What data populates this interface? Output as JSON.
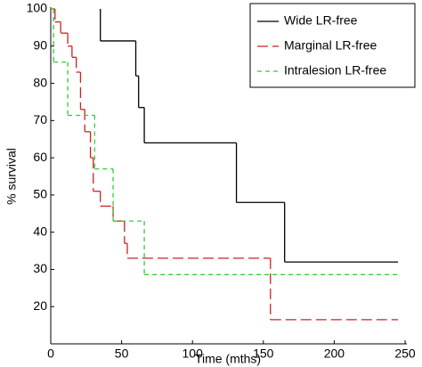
{
  "chart_data": {
    "type": "step",
    "x_label": "Time (mths)",
    "y_label": "% survival",
    "xlim": [
      0,
      250
    ],
    "xticks": [
      0,
      50,
      100,
      150,
      200,
      250
    ],
    "ylim": [
      10,
      100
    ],
    "yticks": [
      20,
      30,
      40,
      50,
      60,
      70,
      80,
      90,
      100
    ],
    "legend": "upper right",
    "series": [
      {
        "name": "Wide LR-free",
        "color": "#000000",
        "dash": "solid",
        "x": [
          35,
          35,
          60,
          62,
          66,
          131,
          165,
          245
        ],
        "values": [
          100,
          91.4,
          82,
          73.5,
          64,
          48,
          32,
          32
        ]
      },
      {
        "name": "Marginal LR-free",
        "color": "#cc2222",
        "dash": "long",
        "x": [
          0,
          3,
          7,
          12,
          15,
          18,
          21,
          24,
          28,
          30,
          35,
          44,
          52,
          54,
          155,
          245
        ],
        "values": [
          100,
          96.5,
          93.5,
          90,
          87,
          83,
          73,
          67,
          60,
          51,
          47,
          43,
          37,
          33,
          16.5,
          16.5
        ]
      },
      {
        "name": "Intralesion LR-free",
        "color": "#33cc33",
        "dash": "short",
        "x": [
          0,
          2,
          12,
          31,
          44,
          66,
          245
        ],
        "values": [
          100,
          85.7,
          71.4,
          57,
          43,
          28.6,
          28.6
        ]
      }
    ]
  }
}
